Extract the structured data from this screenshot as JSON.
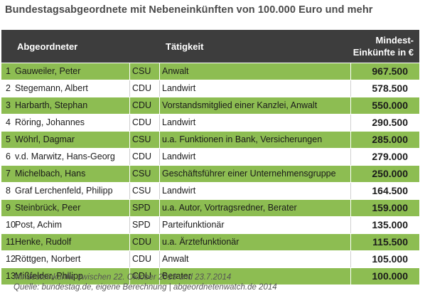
{
  "title": "Bundestagsabgeordnete mit Nebeneinkünften von 100.000 Euro und mehr",
  "header": {
    "name": "Abgeordneter",
    "job": "Tätigkeit",
    "income_line1": "Mindest-",
    "income_line2": "Einkünfte in €"
  },
  "rows": [
    {
      "num": "1",
      "name": "Gauweiler, Peter",
      "party": "CSU",
      "job": "Anwalt",
      "income": "967.500"
    },
    {
      "num": "2",
      "name": "Stegemann, Albert",
      "party": "CDU",
      "job": "Landwirt",
      "income": "578.500"
    },
    {
      "num": "3",
      "name": "Harbarth, Stephan",
      "party": "CDU",
      "job": "Vorstandsmitglied einer Kanzlei, Anwalt",
      "income": "550.000"
    },
    {
      "num": "4",
      "name": "Röring, Johannes",
      "party": "CDU",
      "job": "Landwirt",
      "income": "290.500"
    },
    {
      "num": "5",
      "name": "Wöhrl, Dagmar",
      "party": "CSU",
      "job": "u.a. Funktionen in Bank, Versicherungen",
      "income": "285.000"
    },
    {
      "num": "6",
      "name": "v.d. Marwitz, Hans-Georg",
      "party": "CDU",
      "job": "Landwirt",
      "income": "279.000"
    },
    {
      "num": "7",
      "name": "Michelbach, Hans",
      "party": "CSU",
      "job": "Geschäftsführer einer Unternehmensgruppe",
      "income": "250.000"
    },
    {
      "num": "8",
      "name": "Graf  Lerchenfeld, Philipp",
      "party": "CSU",
      "job": "Landwirt",
      "income": "164.500"
    },
    {
      "num": "9",
      "name": "Steinbrück, Peer",
      "party": "SPD",
      "job": "u.a. Autor, Vortragsredner, Berater",
      "income": "159.000"
    },
    {
      "num": "10",
      "name": "Post, Achim",
      "party": "SPD",
      "job": "Parteifunktionär",
      "income": "135.000"
    },
    {
      "num": "11",
      "name": "Henke, Rudolf",
      "party": "CDU",
      "job": "u.a. Ärztefunktionär",
      "income": "115.500"
    },
    {
      "num": "12",
      "name": "Röttgen, Norbert",
      "party": "CDU",
      "job": "Anwalt",
      "income": "105.000"
    },
    {
      "num": "13",
      "name": "Mißfelder, Philipp",
      "party": "CDU",
      "job": "Berater",
      "income": "100.000"
    }
  ],
  "footnote": {
    "line1": "Mindesteinkünfte zwischen 22. Oktober 2013 und 23.7.2014",
    "line2": "Quelle: bundestag.de, eigene Berechnung  |  abgeordnetenwatch.de 2014"
  },
  "colors": {
    "green": "#8dbd52",
    "header": "#3d3d3d"
  }
}
